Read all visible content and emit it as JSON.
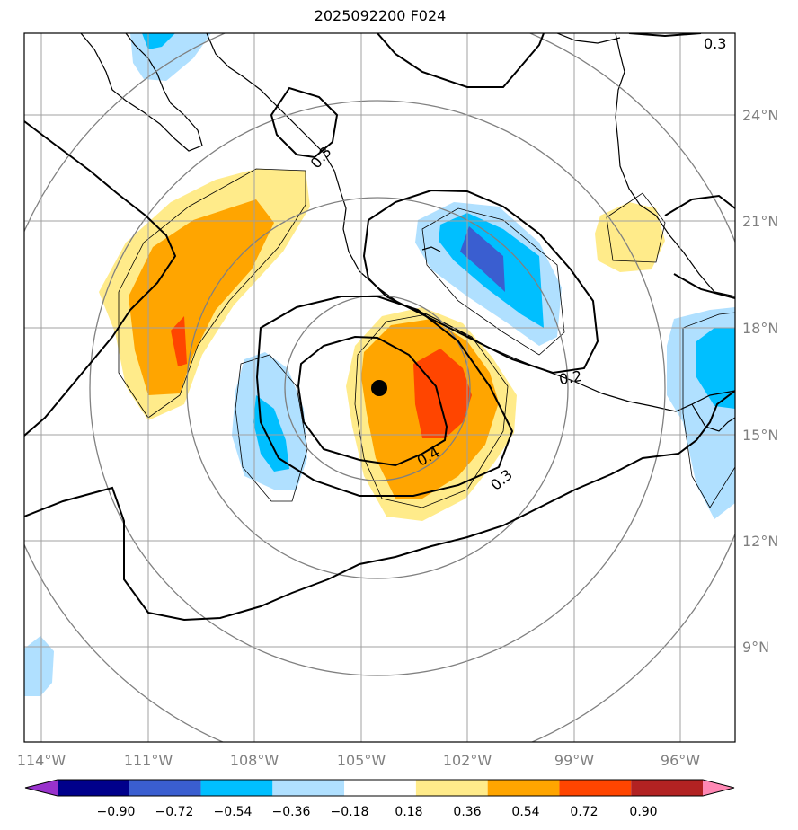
{
  "title": "2025092200 F024",
  "map": {
    "lon_ticks": [
      "114°W",
      "111°W",
      "108°W",
      "105°W",
      "102°W",
      "99°W",
      "96°W"
    ],
    "lat_ticks": [
      "24°N",
      "21°N",
      "18°N",
      "15°N",
      "12°N",
      "9°N"
    ],
    "center_marker": {
      "lon": -104.5,
      "lat": 16.3
    },
    "contour_labels": [
      "0.3",
      "0.3",
      "0.2",
      "0.4",
      "0.3"
    ]
  },
  "colorbar": {
    "ticks": [
      "−0.90",
      "−0.72",
      "−0.54",
      "−0.36",
      "−0.18",
      "0.18",
      "0.36",
      "0.54",
      "0.72",
      "0.90"
    ],
    "colors": [
      "#9932cc",
      "#00008b",
      "#3a5ed0",
      "#00bfff",
      "#b0e0ff",
      "#ffffff",
      "#ffeb8a",
      "#ffa500",
      "#ff4500",
      "#b22222",
      "#ff88b4"
    ]
  }
}
